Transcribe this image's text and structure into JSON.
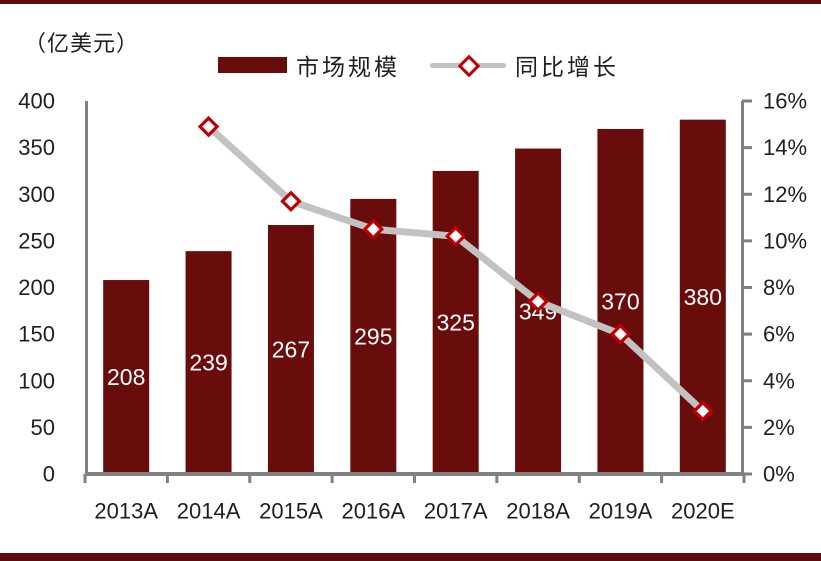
{
  "page": {
    "unit_label": "（亿美元）"
  },
  "chart_data": {
    "type": "bar",
    "title": "",
    "unit_label": "（亿美元）",
    "categories": [
      "2013A",
      "2014A",
      "2015A",
      "2016A",
      "2017A",
      "2018A",
      "2019A",
      "2020E"
    ],
    "series": [
      {
        "name": "市场规模",
        "type": "bar",
        "axis": "left",
        "values": [
          208,
          239,
          267,
          295,
          325,
          349,
          370,
          380
        ]
      },
      {
        "name": "同比增长",
        "type": "line",
        "axis": "right",
        "marker": "diamond",
        "values": [
          null,
          14.9,
          11.7,
          10.5,
          10.2,
          7.4,
          6.0,
          2.7
        ]
      }
    ],
    "left_axis": {
      "min": 0,
      "max": 400,
      "step": 50,
      "ticks": [
        "0",
        "50",
        "100",
        "150",
        "200",
        "250",
        "300",
        "350",
        "400"
      ]
    },
    "right_axis": {
      "min": 0,
      "max": 16,
      "step": 2,
      "ticks": [
        "0%",
        "2%",
        "4%",
        "6%",
        "8%",
        "10%",
        "12%",
        "14%",
        "16%"
      ]
    },
    "grid": false,
    "legend_position": "top",
    "bar_labels_visible": true
  },
  "colors": {
    "bar": "#690C0C",
    "rule": "#5E0B0D",
    "line_gray": "#C2C2C2",
    "marker_red": "#C00000",
    "axis_gray": "#808080",
    "text": "#1F1F1F",
    "bar_label_text": "#FFFFFF"
  }
}
